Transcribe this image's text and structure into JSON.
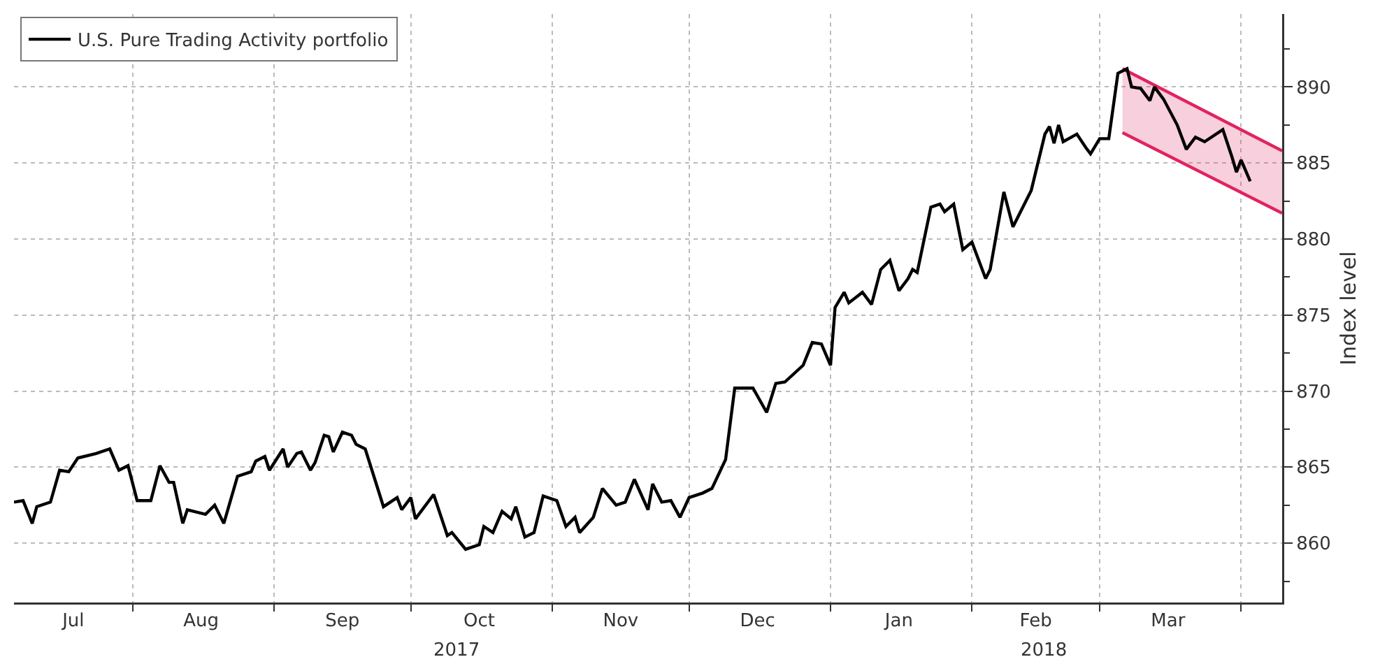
{
  "chart_data": {
    "type": "line",
    "ylabel": "Index level",
    "legend": "top left",
    "grid": true,
    "line_style": "solid",
    "marker": "none",
    "xlim": [
      "2017-07-06",
      "2018-04-10"
    ],
    "xticks": [
      {
        "value": "2017-07-19",
        "label": "Jul"
      },
      {
        "value": "2017-08-01",
        "label": null
      },
      {
        "value": "2017-08-16",
        "label": "Aug"
      },
      {
        "value": "2017-09-01",
        "label": null
      },
      {
        "value": "2017-09-16",
        "label": "Sep"
      },
      {
        "value": "2017-10-01",
        "label": null
      },
      {
        "value": "2017-10-16",
        "label": "Oct"
      },
      {
        "value": "2017-11-01",
        "label": null
      },
      {
        "value": "2017-11-16",
        "label": "Nov"
      },
      {
        "value": "2017-12-01",
        "label": null
      },
      {
        "value": "2017-12-16",
        "label": "Dec"
      },
      {
        "value": "2018-01-01",
        "label": null
      },
      {
        "value": "2018-01-16",
        "label": "Jan"
      },
      {
        "value": "2018-02-01",
        "label": null
      },
      {
        "value": "2018-02-15",
        "label": "Feb"
      },
      {
        "value": "2018-03-01",
        "label": null
      },
      {
        "value": "2018-03-16",
        "label": "Mar"
      },
      {
        "value": "2018-04-01",
        "label": null
      }
    ],
    "ylim": [
      856.1,
      894.8
    ],
    "yticks": [
      {
        "value": 857.5,
        "label": null
      },
      860,
      {
        "value": 862.5,
        "label": null
      },
      865,
      {
        "value": 867.5,
        "label": null
      },
      870,
      {
        "value": 872.5,
        "label": null
      },
      875,
      {
        "value": 877.5,
        "label": null
      },
      880,
      {
        "value": 882.5,
        "label": null
      },
      885,
      {
        "value": 887.5,
        "label": null
      },
      890,
      {
        "value": 892.5,
        "label": null
      }
    ],
    "annotations": [
      "2017",
      "2018"
    ],
    "series": [
      {
        "name": "U.S. Pure Trading Activity portfolio",
        "color": "#000000",
        "x": [
          "2017-07-06",
          "2017-07-08",
          "2017-07-10",
          "2017-07-11",
          "2017-07-14",
          "2017-07-16",
          "2017-07-18",
          "2017-07-20",
          "2017-07-24",
          "2017-07-27",
          "2017-07-29",
          "2017-07-31",
          "2017-08-02",
          "2017-08-05",
          "2017-08-07",
          "2017-08-09",
          "2017-08-10",
          "2017-08-12",
          "2017-08-13",
          "2017-08-17",
          "2017-08-19",
          "2017-08-21",
          "2017-08-24",
          "2017-08-27",
          "2017-08-28",
          "2017-08-30",
          "2017-08-31",
          "2017-09-03",
          "2017-09-04",
          "2017-09-06",
          "2017-09-07",
          "2017-09-09",
          "2017-09-10",
          "2017-09-12",
          "2017-09-13",
          "2017-09-14",
          "2017-09-16",
          "2017-09-18",
          "2017-09-19",
          "2017-09-21",
          "2017-09-25",
          "2017-09-28",
          "2017-09-29",
          "2017-10-01",
          "2017-10-02",
          "2017-10-06",
          "2017-10-09",
          "2017-10-10",
          "2017-10-13",
          "2017-10-16",
          "2017-10-17",
          "2017-10-19",
          "2017-10-21",
          "2017-10-23",
          "2017-10-24",
          "2017-10-26",
          "2017-10-28",
          "2017-10-30",
          "2017-11-02",
          "2017-11-04",
          "2017-11-06",
          "2017-11-07",
          "2017-11-10",
          "2017-11-12",
          "2017-11-15",
          "2017-11-17",
          "2017-11-19",
          "2017-11-22",
          "2017-11-23",
          "2017-11-25",
          "2017-11-27",
          "2017-11-29",
          "2017-12-01",
          "2017-12-04",
          "2017-12-06",
          "2017-12-09",
          "2017-12-11",
          "2017-12-15",
          "2017-12-18",
          "2017-12-20",
          "2017-12-22",
          "2017-12-26",
          "2017-12-28",
          "2017-12-30",
          "2018-01-01",
          "2018-01-02",
          "2018-01-04",
          "2018-01-05",
          "2018-01-08",
          "2018-01-10",
          "2018-01-12",
          "2018-01-14",
          "2018-01-16",
          "2018-01-18",
          "2018-01-19",
          "2018-01-20",
          "2018-01-23",
          "2018-01-25",
          "2018-01-26",
          "2018-01-28",
          "2018-01-30",
          "2018-02-01",
          "2018-02-04",
          "2018-02-05",
          "2018-02-08",
          "2018-02-10",
          "2018-02-12",
          "2018-02-14",
          "2018-02-17",
          "2018-02-18",
          "2018-02-19",
          "2018-02-20",
          "2018-02-21",
          "2018-02-24",
          "2018-02-26",
          "2018-02-27",
          "2018-03-01",
          "2018-03-03",
          "2018-03-05",
          "2018-03-07",
          "2018-03-08",
          "2018-03-10",
          "2018-03-12",
          "2018-03-13",
          "2018-03-15",
          "2018-03-18",
          "2018-03-20",
          "2018-03-22",
          "2018-03-24",
          "2018-03-28",
          "2018-03-30",
          "2018-03-31",
          "2018-04-01",
          "2018-04-03"
        ],
        "values": [
          862.7,
          862.8,
          861.3,
          862.4,
          862.7,
          864.8,
          864.7,
          865.6,
          865.9,
          866.2,
          864.8,
          865.1,
          862.8,
          862.8,
          865.1,
          864.0,
          864.0,
          861.3,
          862.2,
          861.9,
          862.5,
          861.3,
          864.4,
          864.7,
          865.4,
          865.7,
          864.8,
          866.2,
          865.0,
          865.9,
          866.0,
          864.8,
          865.3,
          867.1,
          867.0,
          866.0,
          867.3,
          867.1,
          866.5,
          866.2,
          862.4,
          863.0,
          862.2,
          863.0,
          861.6,
          863.2,
          860.5,
          860.7,
          859.6,
          859.9,
          861.1,
          860.7,
          862.1,
          861.6,
          862.4,
          860.4,
          860.7,
          863.1,
          862.8,
          861.1,
          861.7,
          860.7,
          861.7,
          863.6,
          862.5,
          862.7,
          864.2,
          862.2,
          863.9,
          862.7,
          862.8,
          861.7,
          863.0,
          863.3,
          863.6,
          865.5,
          870.2,
          870.2,
          868.6,
          870.5,
          870.6,
          871.7,
          873.2,
          873.1,
          871.7,
          875.5,
          876.5,
          875.8,
          876.5,
          875.7,
          878.0,
          878.6,
          876.6,
          877.4,
          878.0,
          877.8,
          882.1,
          882.3,
          881.8,
          882.3,
          879.3,
          879.8,
          877.4,
          878.0,
          883.1,
          880.8,
          882.0,
          883.2,
          886.9,
          887.4,
          886.3,
          887.5,
          886.4,
          886.9,
          886.0,
          885.6,
          886.6,
          886.6,
          890.9,
          891.2,
          890.0,
          889.9,
          889.1,
          890.0,
          889.2,
          887.5,
          885.9,
          886.7,
          886.4,
          887.2,
          885.4,
          884.4,
          885.2,
          883.8
        ]
      },
      {
        "type": "line",
        "color": "#e0245e",
        "x": [
          "2018-03-06",
          "2018-04-10"
        ],
        "values": [
          891.2,
          885.8
        ]
      },
      {
        "type": "line",
        "color": "#e0245e",
        "x": [
          "2018-03-06",
          "2018-04-10"
        ],
        "values": [
          887.0,
          881.7
        ],
        "lower": [
          887.0,
          881.7
        ],
        "upper": [
          891.2,
          885.8
        ]
      }
    ]
  }
}
